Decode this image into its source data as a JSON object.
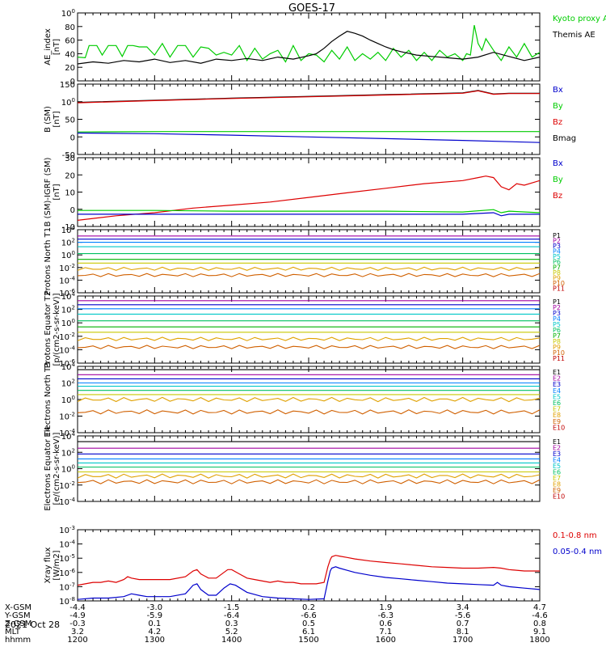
{
  "title": "GOES-17",
  "date_label": "2021 Oct 28",
  "colors": {
    "black": "#000000",
    "red": "#dd0000",
    "green": "#00cc00",
    "blue": "#0000cc",
    "p_colors": [
      "#000000",
      "#a000a0",
      "#0000cc",
      "#0080ff",
      "#00c8c8",
      "#00c060",
      "#00b000",
      "#c8c800",
      "#e0a000",
      "#d06000",
      "#c00000"
    ],
    "e_colors": [
      "#000000",
      "#a000a0",
      "#0000cc",
      "#0080ff",
      "#00c8c8",
      "#00c060",
      "#c8c800",
      "#e0a000",
      "#d06000",
      "#c00000"
    ]
  },
  "chart_data": [
    {
      "type": "line",
      "id": "ae",
      "ylabel": "AE_index [nT]",
      "ylim": [
        0,
        100
      ],
      "yticks": [
        "0",
        "20",
        "40",
        "60",
        "80",
        "100"
      ],
      "legend": [
        {
          "name": "Kyoto proxy AE",
          "color": "green"
        },
        {
          "name": "Themis AE",
          "color": "black"
        }
      ],
      "series": [
        {
          "name": "Kyoto proxy AE",
          "color": "green",
          "x": [
            1200,
            1210,
            1215,
            1225,
            1232,
            1240,
            1250,
            1258,
            1265,
            1272,
            1280,
            1290,
            1300,
            1310,
            1320,
            1330,
            1340,
            1350,
            1360,
            1370,
            1380,
            1390,
            1400,
            1410,
            1420,
            1430,
            1440,
            1450,
            1460,
            1470,
            1480,
            1490,
            1500,
            1510,
            1520,
            1530,
            1540,
            1550,
            1560,
            1570,
            1580,
            1590,
            1600,
            1610,
            1620,
            1630,
            1640,
            1650,
            1660,
            1670,
            1680,
            1690,
            1700,
            1705,
            1710,
            1715,
            1720,
            1725,
            1730,
            1740,
            1750,
            1760,
            1770,
            1780,
            1790,
            1800
          ],
          "y": [
            35,
            34,
            52,
            52,
            38,
            52,
            52,
            36,
            52,
            52,
            50,
            50,
            38,
            55,
            35,
            52,
            52,
            35,
            50,
            48,
            38,
            42,
            38,
            52,
            30,
            48,
            32,
            40,
            45,
            28,
            52,
            30,
            40,
            38,
            28,
            45,
            32,
            50,
            30,
            40,
            32,
            42,
            30,
            48,
            35,
            45,
            30,
            42,
            30,
            45,
            35,
            40,
            30,
            40,
            38,
            82,
            55,
            45,
            62,
            45,
            30,
            50,
            35,
            55,
            35,
            42
          ]
        },
        {
          "name": "Themis AE",
          "color": "black",
          "x": [
            1200,
            1220,
            1240,
            1260,
            1280,
            1300,
            1320,
            1340,
            1360,
            1380,
            1400,
            1420,
            1440,
            1460,
            1480,
            1500,
            1510,
            1520,
            1530,
            1540,
            1550,
            1560,
            1570,
            1580,
            1590,
            1600,
            1610,
            1620,
            1640,
            1660,
            1680,
            1700,
            1720,
            1740,
            1760,
            1780,
            1800
          ],
          "y": [
            25,
            28,
            26,
            30,
            28,
            32,
            27,
            30,
            26,
            32,
            30,
            33,
            30,
            35,
            32,
            37,
            40,
            48,
            58,
            66,
            73,
            70,
            66,
            60,
            55,
            50,
            46,
            43,
            38,
            36,
            34,
            32,
            35,
            42,
            36,
            30,
            35
          ]
        }
      ]
    },
    {
      "type": "line",
      "id": "bsm",
      "ylabel": "B (SM) [nT]",
      "ylim": [
        -50,
        150
      ],
      "yticks": [
        "-50",
        "0",
        "50",
        "100",
        "150"
      ],
      "legend": [
        {
          "name": "Bx",
          "color": "blue"
        },
        {
          "name": "By",
          "color": "green"
        },
        {
          "name": "Bz",
          "color": "red"
        },
        {
          "name": "Bmag",
          "color": "black"
        }
      ],
      "series": [
        {
          "name": "Bmag",
          "color": "black",
          "x": [
            1200,
            1300,
            1400,
            1500,
            1600,
            1700,
            1720,
            1740,
            1760,
            1800
          ],
          "y": [
            98,
            104,
            110,
            115,
            120,
            125,
            132,
            122,
            124,
            124
          ]
        },
        {
          "name": "Bz",
          "color": "red",
          "x": [
            1200,
            1300,
            1400,
            1500,
            1600,
            1700,
            1720,
            1740,
            1760,
            1800
          ],
          "y": [
            97,
            103,
            109,
            114,
            119,
            124,
            131,
            121,
            123,
            123
          ]
        },
        {
          "name": "By",
          "color": "green",
          "x": [
            1200,
            1300,
            1400,
            1500,
            1600,
            1700,
            1800
          ],
          "y": [
            14,
            15,
            15,
            15,
            15,
            15,
            15
          ]
        },
        {
          "name": "Bx",
          "color": "blue",
          "x": [
            1200,
            1300,
            1400,
            1500,
            1600,
            1700,
            1800
          ],
          "y": [
            11,
            9,
            5,
            0,
            -5,
            -10,
            -16
          ]
        }
      ]
    },
    {
      "type": "line",
      "id": "bigrf",
      "ylabel": "B (SM)-IGRF (SM) [nT]",
      "ylim": [
        -10,
        35
      ],
      "yticks": [
        "-10",
        "0",
        "10",
        "20",
        "30"
      ],
      "legend": [
        {
          "name": "Bx",
          "color": "blue"
        },
        {
          "name": "By",
          "color": "green"
        },
        {
          "name": "Bz",
          "color": "red"
        }
      ],
      "series": [
        {
          "name": "Bz",
          "color": "red",
          "x": [
            1200,
            1250,
            1300,
            1350,
            1400,
            1450,
            1500,
            1550,
            1600,
            1650,
            1700,
            1720,
            1730,
            1740,
            1750,
            1760,
            1770,
            1780,
            1800
          ],
          "y": [
            -6,
            -3,
            -1,
            2,
            4,
            6,
            9,
            12,
            15,
            18,
            20,
            22,
            23,
            22,
            16,
            14,
            18,
            17,
            20
          ]
        },
        {
          "name": "By",
          "color": "green",
          "x": [
            1200,
            1300,
            1400,
            1500,
            1600,
            1700,
            1740,
            1750,
            1760,
            1800
          ],
          "y": [
            0.5,
            0.5,
            0,
            0,
            0,
            -0.5,
            1,
            -1,
            0,
            -1
          ]
        },
        {
          "name": "Bx",
          "color": "blue",
          "x": [
            1200,
            1300,
            1400,
            1500,
            1600,
            1700,
            1740,
            1750,
            1760,
            1800
          ],
          "y": [
            -2,
            -2,
            -2,
            -2,
            -2,
            -2,
            -1,
            -3,
            -2,
            -2
          ]
        }
      ]
    },
    {
      "type": "line",
      "id": "pnorth",
      "log": true,
      "ylabel": "Protons North T1",
      "ylim": [
        -6,
        4
      ],
      "yticks": [
        "10-6",
        "10-4",
        "10-2",
        "100",
        "102",
        "104"
      ],
      "legend": [
        {
          "name": "P1",
          "color": "p0"
        },
        {
          "name": "P2",
          "color": "p1"
        },
        {
          "name": "P3",
          "color": "p2"
        },
        {
          "name": "P4",
          "color": "p3"
        },
        {
          "name": "P5",
          "color": "p4"
        },
        {
          "name": "P6",
          "color": "p5"
        },
        {
          "name": "P7",
          "color": "p6"
        },
        {
          "name": "P8",
          "color": "p7"
        },
        {
          "name": "P9",
          "color": "p8"
        },
        {
          "name": "P10",
          "color": "p9"
        },
        {
          "name": "P11",
          "color": "p10"
        }
      ],
      "levels": [
        3.0,
        2.5,
        2.0,
        1.3,
        0.2,
        -0.7,
        -1.3,
        -2.2,
        -3.2
      ]
    },
    {
      "type": "line",
      "id": "peq",
      "log": true,
      "ylabel": "Protons Equator T2 [p/(cm2-s-sr-keV)]",
      "ylim": [
        -6,
        4
      ],
      "yticks": [
        "10-6",
        "10-4",
        "10-2",
        "100",
        "102",
        "104"
      ],
      "legend": [
        {
          "name": "P1",
          "color": "p0"
        },
        {
          "name": "P2",
          "color": "p1"
        },
        {
          "name": "P3",
          "color": "p2"
        },
        {
          "name": "P4",
          "color": "p3"
        },
        {
          "name": "P5",
          "color": "p4"
        },
        {
          "name": "P6",
          "color": "p5"
        },
        {
          "name": "P7",
          "color": "p6"
        },
        {
          "name": "P8",
          "color": "p7"
        },
        {
          "name": "P9",
          "color": "p8"
        },
        {
          "name": "P10",
          "color": "p9"
        },
        {
          "name": "P11",
          "color": "p10"
        }
      ],
      "levels": [
        3.3,
        2.7,
        2.1,
        1.3,
        0.3,
        -0.6,
        -1.4,
        -2.4,
        -3.6
      ]
    },
    {
      "type": "line",
      "id": "enorth",
      "log": true,
      "ylabel": "Electrons North T3",
      "ylim": [
        -4,
        4
      ],
      "yticks": [
        "10-4",
        "10-2",
        "100",
        "102",
        "104"
      ],
      "legend": [
        {
          "name": "E1",
          "color": "e0"
        },
        {
          "name": "E2",
          "color": "e1"
        },
        {
          "name": "E3",
          "color": "e2"
        },
        {
          "name": "E4",
          "color": "e3"
        },
        {
          "name": "E5",
          "color": "e4"
        },
        {
          "name": "E6",
          "color": "e5"
        },
        {
          "name": "E7",
          "color": "e6"
        },
        {
          "name": "E8",
          "color": "e7"
        },
        {
          "name": "E9",
          "color": "e8"
        },
        {
          "name": "E10",
          "color": "e9"
        }
      ],
      "levels": [
        3.6,
        3.0,
        2.5,
        2.0,
        1.6,
        1.1,
        0.6,
        0.0,
        -1.5
      ]
    },
    {
      "type": "line",
      "id": "eeq",
      "log": true,
      "ylabel": "Electrons Equator T4 [e/(cm2-s-sr-keV)]",
      "ylim": [
        -4,
        4
      ],
      "yticks": [
        "10-4",
        "10-2",
        "100",
        "102",
        "104"
      ],
      "legend": [
        {
          "name": "E1",
          "color": "e0"
        },
        {
          "name": "E2",
          "color": "e1"
        },
        {
          "name": "E3",
          "color": "e2"
        },
        {
          "name": "E4",
          "color": "e3"
        },
        {
          "name": "E5",
          "color": "e4"
        },
        {
          "name": "E6",
          "color": "e5"
        },
        {
          "name": "E7",
          "color": "e6"
        },
        {
          "name": "E8",
          "color": "e7"
        },
        {
          "name": "E9",
          "color": "e8"
        },
        {
          "name": "E10",
          "color": "e9"
        }
      ],
      "levels": [
        3.3,
        2.5,
        1.8,
        1.2,
        0.7,
        0.2,
        -0.4,
        -0.9,
        -1.6
      ]
    },
    {
      "type": "line",
      "id": "xray",
      "log": true,
      "ylabel": "Xray flux [W/m2]",
      "ylim": [
        -8,
        -3
      ],
      "yticks": [
        "10-8",
        "10-7",
        "10-6",
        "10-5",
        "10-4",
        "10-3"
      ],
      "legend": [
        {
          "name": "0.1-0.8 nm",
          "color": "red"
        },
        {
          "name": "0.05-0.4 nm",
          "color": "blue"
        }
      ],
      "series": [
        {
          "name": "0.1-0.8 nm",
          "color": "red",
          "x": [
            1200,
            1210,
            1220,
            1230,
            1240,
            1250,
            1260,
            1265,
            1270,
            1280,
            1290,
            1300,
            1320,
            1340,
            1350,
            1355,
            1360,
            1370,
            1380,
            1390,
            1395,
            1400,
            1410,
            1420,
            1430,
            1440,
            1450,
            1460,
            1470,
            1480,
            1490,
            1500,
            1510,
            1520,
            1525,
            1528,
            1530,
            1535,
            1540,
            1550,
            1560,
            1580,
            1600,
            1620,
            1640,
            1660,
            1680,
            1700,
            1720,
            1740,
            1750,
            1760,
            1780,
            1800
          ],
          "y": [
            -6.9,
            -6.8,
            -6.7,
            -6.7,
            -6.6,
            -6.7,
            -6.5,
            -6.3,
            -6.4,
            -6.5,
            -6.5,
            -6.5,
            -6.5,
            -6.3,
            -5.9,
            -5.8,
            -6.1,
            -6.4,
            -6.4,
            -6.0,
            -5.8,
            -5.8,
            -6.1,
            -6.4,
            -6.5,
            -6.6,
            -6.7,
            -6.6,
            -6.7,
            -6.7,
            -6.8,
            -6.8,
            -6.8,
            -6.7,
            -5.6,
            -5.1,
            -4.9,
            -4.8,
            -4.85,
            -4.95,
            -5.05,
            -5.2,
            -5.3,
            -5.4,
            -5.5,
            -5.6,
            -5.65,
            -5.7,
            -5.7,
            -5.65,
            -5.7,
            -5.8,
            -5.9,
            -5.9
          ]
        },
        {
          "name": "0.05-0.4 nm",
          "color": "blue",
          "x": [
            1200,
            1220,
            1240,
            1260,
            1270,
            1280,
            1290,
            1300,
            1320,
            1340,
            1350,
            1355,
            1360,
            1370,
            1380,
            1390,
            1398,
            1405,
            1420,
            1440,
            1460,
            1480,
            1500,
            1520,
            1525,
            1528,
            1530,
            1535,
            1540,
            1550,
            1560,
            1580,
            1600,
            1620,
            1640,
            1660,
            1680,
            1700,
            1720,
            1740,
            1745,
            1750,
            1760,
            1780,
            1800
          ],
          "y": [
            -7.9,
            -7.8,
            -7.8,
            -7.7,
            -7.5,
            -7.6,
            -7.7,
            -7.7,
            -7.7,
            -7.5,
            -6.9,
            -6.8,
            -7.2,
            -7.6,
            -7.6,
            -7.1,
            -6.8,
            -6.9,
            -7.4,
            -7.7,
            -7.8,
            -7.85,
            -7.9,
            -7.85,
            -6.6,
            -5.9,
            -5.7,
            -5.6,
            -5.7,
            -5.85,
            -6.0,
            -6.2,
            -6.35,
            -6.45,
            -6.55,
            -6.65,
            -6.75,
            -6.8,
            -6.85,
            -6.9,
            -6.7,
            -6.9,
            -7.0,
            -7.1,
            -7.2
          ]
        }
      ]
    }
  ],
  "xaxis": {
    "rows": [
      {
        "label": "X-GSM",
        "values": [
          "-4.4",
          "-3.0",
          "-1.5",
          "0.2",
          "1.9",
          "3.4",
          "4.7"
        ]
      },
      {
        "label": "Y-GSM",
        "values": [
          "-4.9",
          "-5.9",
          "-6.4",
          "-6.6",
          "-6.3",
          "-5.6",
          "-4.6"
        ]
      },
      {
        "label": "Z-GSM",
        "values": [
          "-0.3",
          "0.1",
          "0.3",
          "0.5",
          "0.6",
          "0.7",
          "0.8"
        ]
      },
      {
        "label": "MLT",
        "values": [
          "3.2",
          "4.2",
          "5.2",
          "6.1",
          "7.1",
          "8.1",
          "9.1"
        ]
      },
      {
        "label": "hhmm",
        "values": [
          "1200",
          "1300",
          "1400",
          "1500",
          "1600",
          "1700",
          "1800"
        ]
      }
    ]
  }
}
